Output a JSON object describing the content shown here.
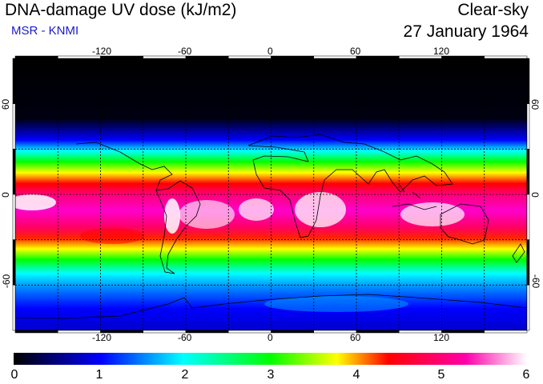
{
  "header": {
    "title": "DNA-damage UV dose (kJ/m2)",
    "subtitle": "MSR - KNMI",
    "condition": "Clear-sky",
    "date": "27 January 1964"
  },
  "colors": {
    "subtitle": "#1a1acc",
    "scale": [
      "#000000",
      "#0000ff",
      "#00ffff",
      "#00ff00",
      "#ffff00",
      "#ff0000",
      "#ff00aa",
      "#ffffff"
    ]
  },
  "map": {
    "lon_range": [
      -180,
      180
    ],
    "lat_range": [
      -90,
      90
    ],
    "graticule_step": 30,
    "lon_tick_labels": [
      "-120",
      "-60",
      "0",
      "60",
      "120"
    ],
    "lat_tick_labels": [
      "60",
      "0",
      "-60"
    ]
  },
  "colorbar": {
    "range": [
      0,
      6
    ],
    "tick_labels": [
      "0",
      "1",
      "2",
      "3",
      "4",
      "5",
      "6"
    ]
  }
}
